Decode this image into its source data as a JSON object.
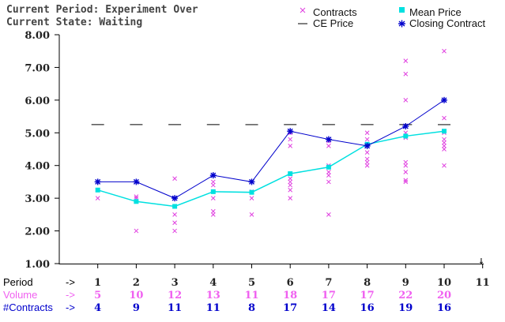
{
  "header": {
    "period_line": "Current Period: Experiment Over",
    "state_line": "Current State: Waiting"
  },
  "legend": {
    "contracts": "Contracts",
    "mean_price": "Mean Price",
    "ce_price": "CE Price",
    "closing_contract": "Closing Contract"
  },
  "colors": {
    "contracts": "#e040e0",
    "mean_price": "#00e0e0",
    "ce_price": "#000000",
    "closing": "#0000cc",
    "volume_text": "#f060f0",
    "contracts_text": "#0000cc"
  },
  "x_axis_arrow": "↓",
  "table": {
    "row_labels": {
      "period": "Period",
      "volume": "Volume",
      "contracts": "#Contracts"
    },
    "arrows": {
      "period": "->",
      "volume": "->",
      "contracts": "->"
    },
    "volume": [
      "5",
      "10",
      "12",
      "13",
      "11",
      "18",
      "17",
      "17",
      "22",
      "20"
    ],
    "num_contracts": [
      "4",
      "9",
      "11",
      "11",
      "8",
      "17",
      "14",
      "16",
      "19",
      "16"
    ]
  },
  "chart_data": {
    "type": "line",
    "x_ticks": [
      "1",
      "2",
      "3",
      "4",
      "5",
      "6",
      "7",
      "8",
      "9",
      "10",
      "11"
    ],
    "y_ticks": [
      "1.00",
      "2.00",
      "3.00",
      "4.00",
      "5.00",
      "6.00",
      "7.00",
      "8.00"
    ],
    "ylim": [
      1,
      8
    ],
    "xlim": [
      0,
      11
    ],
    "ce_price": 5.25,
    "series": [
      {
        "name": "Closing Contract",
        "x": [
          1,
          2,
          3,
          4,
          5,
          6,
          7,
          8,
          9,
          10
        ],
        "values": [
          3.5,
          3.5,
          3.0,
          3.7,
          3.5,
          5.05,
          4.8,
          4.6,
          5.2,
          6.0
        ]
      },
      {
        "name": "Mean Price",
        "x": [
          1,
          2,
          3,
          4,
          5,
          6,
          7,
          8,
          9,
          10
        ],
        "values": [
          3.25,
          2.9,
          2.75,
          3.2,
          3.18,
          3.75,
          3.95,
          4.65,
          4.9,
          5.05
        ]
      }
    ],
    "contracts": [
      {
        "x": 1,
        "y": [
          3.0,
          3.25,
          3.5
        ]
      },
      {
        "x": 2,
        "y": [
          2.0,
          3.0,
          3.05
        ]
      },
      {
        "x": 3,
        "y": [
          2.0,
          2.25,
          2.5,
          3.0,
          3.6
        ]
      },
      {
        "x": 4,
        "y": [
          2.5,
          2.6,
          3.0,
          3.4,
          3.5
        ]
      },
      {
        "x": 5,
        "y": [
          2.5,
          3.0,
          3.2,
          3.5
        ]
      },
      {
        "x": 6,
        "y": [
          3.0,
          3.25,
          3.4,
          3.5,
          3.6,
          4.6,
          4.8,
          5.0
        ]
      },
      {
        "x": 7,
        "y": [
          2.5,
          3.5,
          3.7,
          3.8,
          4.0,
          4.6,
          4.75
        ]
      },
      {
        "x": 8,
        "y": [
          4.0,
          4.1,
          4.2,
          4.4,
          4.6,
          4.8,
          5.0
        ]
      },
      {
        "x": 9,
        "y": [
          3.5,
          3.55,
          3.8,
          4.0,
          4.1,
          4.85,
          5.0,
          5.2,
          6.0,
          6.8,
          7.2
        ]
      },
      {
        "x": 10,
        "y": [
          4.0,
          4.5,
          4.6,
          4.7,
          4.8,
          5.0,
          5.45,
          6.0,
          7.5
        ]
      }
    ]
  }
}
